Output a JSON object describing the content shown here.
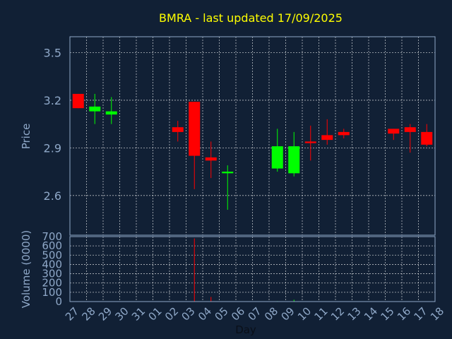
{
  "chart_data": {
    "type": "candlestick",
    "title": "BMRA - last updated 17/09/2025",
    "xlabel": "Day",
    "price_panel": {
      "ylabel": "Price",
      "ylim": [
        2.35,
        3.6
      ],
      "yticks": [
        "2.6",
        "2.9",
        "3.2",
        "3.5"
      ],
      "ytick_values": [
        2.6,
        2.9,
        3.2,
        3.5
      ]
    },
    "volume_panel": {
      "ylabel": "Volume (0000)",
      "ylim": [
        0,
        700
      ],
      "yticks": [
        "0",
        "100",
        "200",
        "300",
        "400",
        "500",
        "600",
        "700"
      ],
      "ytick_values": [
        0,
        100,
        200,
        300,
        400,
        500,
        600,
        700
      ]
    },
    "x_ticks": [
      "27",
      "28",
      "29",
      "30",
      "31",
      "01",
      "02",
      "03",
      "04",
      "05",
      "06",
      "07",
      "08",
      "09",
      "10",
      "11",
      "12",
      "13",
      "14",
      "15",
      "16",
      "17",
      "18"
    ],
    "grid": true,
    "colors": {
      "background": "#112035",
      "up": "#00ff00",
      "down": "#ff0000",
      "title": "#ffff00",
      "axis_text": "#8fa8c8",
      "frame": "#8fa8c8",
      "grid": "#ffffff"
    },
    "candles": [
      {
        "day": "27",
        "open": 3.24,
        "high": 3.24,
        "low": 3.15,
        "close": 3.15,
        "volume": 0
      },
      {
        "day": "28",
        "open": 3.13,
        "high": 3.24,
        "low": 3.05,
        "close": 3.16,
        "volume": 2
      },
      {
        "day": "29",
        "open": 3.11,
        "high": 3.22,
        "low": 3.05,
        "close": 3.13,
        "volume": 2
      },
      {
        "day": "02",
        "open": 3.03,
        "high": 3.07,
        "low": 2.94,
        "close": 3.0,
        "volume": 1
      },
      {
        "day": "03",
        "open": 3.19,
        "high": 3.19,
        "low": 2.64,
        "close": 2.85,
        "volume": 680
      },
      {
        "day": "04",
        "open": 2.84,
        "high": 2.94,
        "low": 2.71,
        "close": 2.82,
        "volume": 50
      },
      {
        "day": "05",
        "open": 2.74,
        "high": 2.79,
        "low": 2.51,
        "close": 2.75,
        "volume": 3
      },
      {
        "day": "08",
        "open": 2.77,
        "high": 3.02,
        "low": 2.75,
        "close": 2.91,
        "volume": 5
      },
      {
        "day": "09",
        "open": 2.74,
        "high": 3.0,
        "low": 2.72,
        "close": 2.91,
        "volume": 20
      },
      {
        "day": "10",
        "open": 2.94,
        "high": 3.04,
        "low": 2.82,
        "close": 2.93,
        "volume": 2
      },
      {
        "day": "11",
        "open": 2.98,
        "high": 3.08,
        "low": 2.92,
        "close": 2.95,
        "volume": 2
      },
      {
        "day": "12",
        "open": 3.0,
        "high": 3.02,
        "low": 2.96,
        "close": 2.98,
        "volume": 1
      },
      {
        "day": "15",
        "open": 3.02,
        "high": 3.02,
        "low": 2.95,
        "close": 2.99,
        "volume": 2
      },
      {
        "day": "16",
        "open": 3.03,
        "high": 3.05,
        "low": 2.87,
        "close": 3.0,
        "volume": 3
      },
      {
        "day": "17",
        "open": 3.0,
        "high": 3.05,
        "low": 2.91,
        "close": 2.92,
        "volume": 3
      }
    ]
  }
}
